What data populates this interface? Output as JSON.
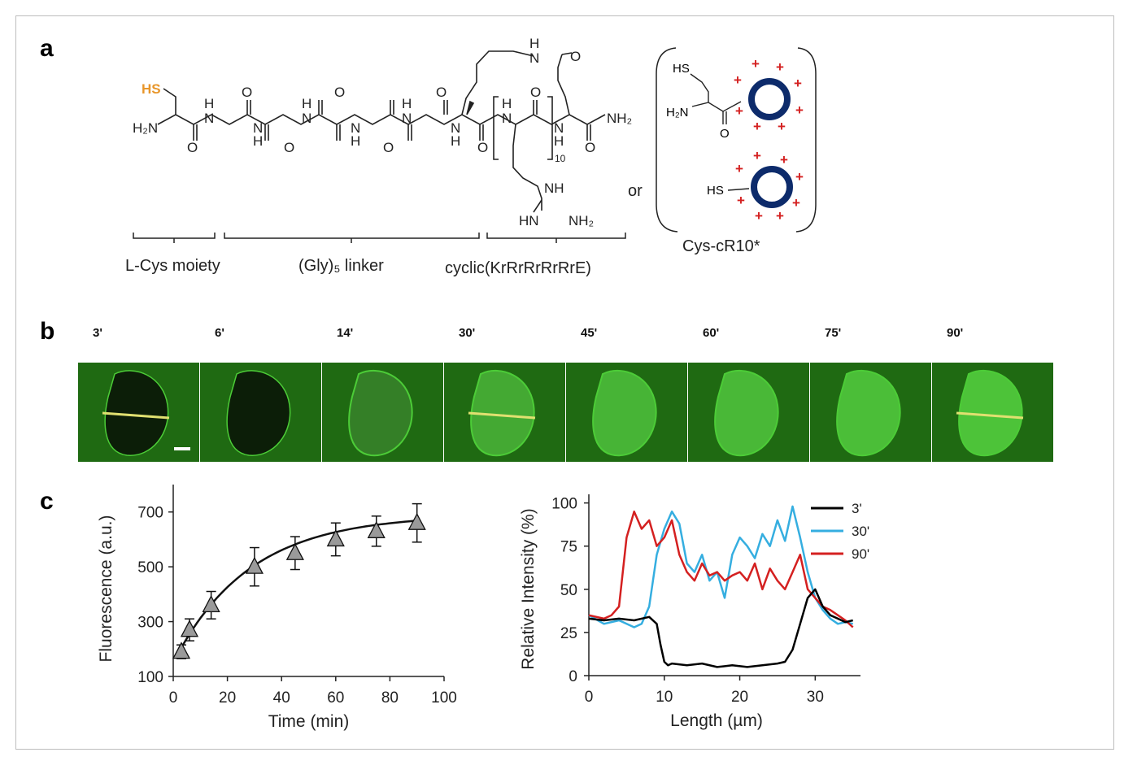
{
  "panels": {
    "a": "a",
    "b": "b",
    "c": "c"
  },
  "panel_a": {
    "sh_label": "HS",
    "h2n": "H₂N",
    "nh2": "NH₂",
    "o": "O",
    "h": "H",
    "n": "N",
    "hn": "HN",
    "nh": "NH",
    "subscript_10": "10",
    "or": "or",
    "cys_label": "L-Cys moiety",
    "linker_label": "(Gly)₅ linker",
    "cyclic_label": "cyclic(KrRrRrRrRrE)",
    "schematic_hs": "HS",
    "schematic_h2n": "H₂N",
    "schematic_o": "O",
    "cys_cr10": "Cys-cR10*",
    "plus": "+",
    "sh_color": "#e8962a",
    "ring_color": "#0d2b6b",
    "plus_color": "#d42020"
  },
  "panel_b": {
    "time_labels": [
      "3'",
      "6'",
      "14'",
      "30'",
      "45'",
      "60'",
      "75'",
      "90'"
    ],
    "profile_lines_on": [
      "3'",
      "30'",
      "90'"
    ],
    "background_color": "#1f6a12",
    "line_color": "#e0e070"
  },
  "chart_data": [
    {
      "type": "line",
      "xlabel": "Time (min)",
      "ylabel": "Fluorescence (a.u.)",
      "xlim": [
        0,
        100
      ],
      "ylim": [
        100,
        800
      ],
      "xticks": [
        0,
        20,
        40,
        60,
        80,
        100
      ],
      "yticks": [
        100,
        300,
        500,
        700
      ],
      "marker": "triangle",
      "x": [
        3,
        6,
        14,
        30,
        45,
        60,
        75,
        90
      ],
      "y": [
        190,
        270,
        360,
        500,
        550,
        600,
        630,
        660
      ],
      "error": [
        25,
        40,
        50,
        70,
        60,
        60,
        55,
        70
      ],
      "fit": true
    },
    {
      "type": "line",
      "xlabel": "Length (µm)",
      "ylabel": "Relative Intensity (%)",
      "xlim": [
        0,
        36
      ],
      "ylim": [
        0,
        105
      ],
      "xticks": [
        0,
        10,
        20,
        30
      ],
      "yticks": [
        0,
        25,
        50,
        75,
        100
      ],
      "legend_position": "top-right",
      "series": [
        {
          "name": "3'",
          "color": "#000000",
          "x": [
            0,
            2,
            4,
            6,
            8,
            9,
            9.5,
            10,
            10.5,
            11,
            13,
            15,
            17,
            19,
            21,
            23,
            25,
            26,
            27,
            28,
            29,
            30,
            31,
            32,
            33,
            34,
            35
          ],
          "y": [
            33,
            32,
            33,
            32,
            34,
            30,
            18,
            8,
            6,
            7,
            6,
            7,
            5,
            6,
            5,
            6,
            7,
            8,
            15,
            30,
            45,
            50,
            40,
            35,
            33,
            31,
            32
          ]
        },
        {
          "name": "30'",
          "color": "#35aee0",
          "x": [
            0,
            2,
            4,
            6,
            7,
            8,
            9,
            10,
            11,
            12,
            13,
            14,
            15,
            16,
            17,
            18,
            19,
            20,
            21,
            22,
            23,
            24,
            25,
            26,
            27,
            28,
            29,
            30,
            31,
            32,
            33,
            34,
            35
          ],
          "y": [
            35,
            30,
            32,
            28,
            30,
            40,
            70,
            85,
            95,
            88,
            65,
            60,
            70,
            55,
            60,
            45,
            70,
            80,
            75,
            68,
            82,
            75,
            90,
            78,
            98,
            80,
            60,
            45,
            38,
            33,
            30,
            31,
            30
          ]
        },
        {
          "name": "90'",
          "color": "#d42020",
          "x": [
            0,
            2,
            3,
            4,
            5,
            6,
            7,
            8,
            9,
            10,
            11,
            12,
            13,
            14,
            15,
            16,
            17,
            18,
            19,
            20,
            21,
            22,
            23,
            24,
            25,
            26,
            27,
            28,
            29,
            30,
            31,
            32,
            33,
            34,
            35
          ],
          "y": [
            35,
            33,
            35,
            40,
            80,
            95,
            85,
            90,
            75,
            80,
            90,
            70,
            60,
            55,
            65,
            58,
            60,
            55,
            58,
            60,
            55,
            65,
            50,
            62,
            55,
            50,
            60,
            70,
            50,
            45,
            40,
            38,
            35,
            32,
            28
          ]
        }
      ]
    }
  ]
}
